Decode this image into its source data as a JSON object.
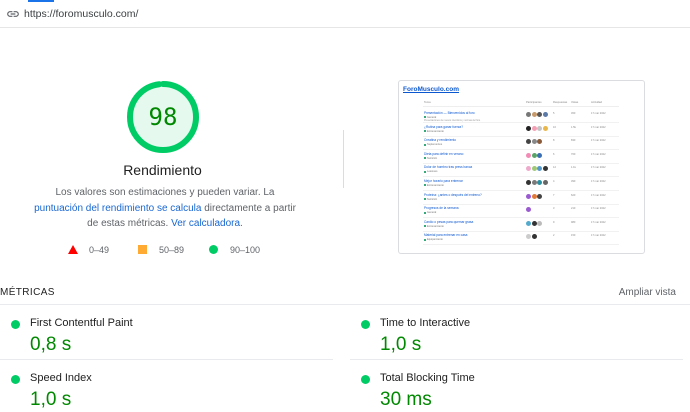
{
  "url_bar": {
    "url": "https://foromusculo.com/",
    "icon": "link-icon"
  },
  "score": {
    "value": 98,
    "value_text": "98",
    "fraction": 0.98,
    "title": "Rendimiento",
    "color": "#00cc66",
    "fill": "#e6f9ef",
    "text_color": "#008800"
  },
  "description": {
    "text1": "Los valores son estimaciones y pueden variar. La ",
    "link1": "puntuación del rendimiento se calcula",
    "text2": " directamente a partir de estas métricas. ",
    "link2": "Ver calculadora",
    "text3": "."
  },
  "legend": [
    {
      "shape": "triangle",
      "color": "#ff0000",
      "label": "0–49"
    },
    {
      "shape": "square",
      "color": "#ffaa33",
      "label": "50–89"
    },
    {
      "shape": "circle",
      "color": "#00cc66",
      "label": "90–100"
    }
  ],
  "thumbnail": {
    "brand": "ForoMusculo.com",
    "columns": [
      "Tema",
      "Participantes",
      "Respuestas",
      "Vistas",
      "Actividad"
    ],
    "rows": [
      {
        "title": "Presentación — Bienvenidos al foro",
        "cat": "General",
        "snippet": "Presentaciones de nuevos miembros y normas del foro",
        "avatars": [
          "#777777",
          "#c79a6b",
          "#555555",
          "#5b7aa8"
        ],
        "replies": "5",
        "views": "450",
        "activity": "17 mar 2022"
      },
      {
        "title": "¿Rutina para ganar fuerza?",
        "cat": "Entrenamiento",
        "avatars": [
          "#222222",
          "#f3a0b6",
          "#c4c4c4",
          "#e9b74a"
        ],
        "replies": "10",
        "views": "1.5k",
        "activity": "17 mar 2022"
      },
      {
        "title": "Creatina y rendimiento",
        "cat": "Suplementos",
        "avatars": [
          "#444444",
          "#888888",
          "#8a5a3a"
        ],
        "replies": "8",
        "views": "830",
        "activity": "17 mar 2022"
      },
      {
        "title": "Dieta para definir en verano",
        "cat": "Nutrición",
        "avatars": [
          "#f28bb5",
          "#5aa469",
          "#3a6fb5"
        ],
        "replies": "6",
        "views": "760",
        "activity": "17 mar 2022"
      },
      {
        "title": "Dolor de hombro tras press banca",
        "cat": "Lesiones",
        "avatars": [
          "#eeaacc",
          "#a0c878",
          "#5599cc",
          "#333333"
        ],
        "replies": "12",
        "views": "1.1k",
        "activity": "17 mar 2022"
      },
      {
        "title": "Mejor horario para entrenar",
        "cat": "Entrenamiento",
        "avatars": [
          "#333333",
          "#7a7a7a",
          "#2a8fa0",
          "#666666"
        ],
        "replies": "4",
        "views": "390",
        "activity": "17 mar 2022"
      },
      {
        "title": "Proteína: ¿antes o después del entreno?",
        "cat": "Nutrición",
        "avatars": [
          "#9a5ad0",
          "#e07a3a",
          "#444444"
        ],
        "replies": "7",
        "views": "620",
        "activity": "17 mar 2022"
      },
      {
        "title": "Progresos de la semana",
        "cat": "General",
        "avatars": [
          "#9a5ad0"
        ],
        "replies": "3",
        "views": "210",
        "activity": "17 mar 2022"
      },
      {
        "title": "Cardio o pesas para quemar grasa",
        "cat": "Entrenamiento",
        "avatars": [
          "#55aacc",
          "#333333",
          "#bbbbbb"
        ],
        "replies": "9",
        "views": "980",
        "activity": "17 mar 2022"
      },
      {
        "title": "Material para entrenar en casa",
        "cat": "Equipamiento",
        "avatars": [
          "#cccccc",
          "#333333"
        ],
        "replies": "2",
        "views": "150",
        "activity": "17 mar 2022"
      }
    ]
  },
  "metrics_section": {
    "label": "MÉTRICAS",
    "expand_label": "Ampliar vista"
  },
  "metrics": [
    {
      "name": "First Contentful Paint",
      "value": "0,8 s",
      "status_color": "#00cc66"
    },
    {
      "name": "Time to Interactive",
      "value": "1,0 s",
      "status_color": "#00cc66"
    },
    {
      "name": "Speed Index",
      "value": "1,0 s",
      "status_color": "#00cc66"
    },
    {
      "name": "Total Blocking Time",
      "value": "30 ms",
      "status_color": "#00cc66"
    }
  ]
}
